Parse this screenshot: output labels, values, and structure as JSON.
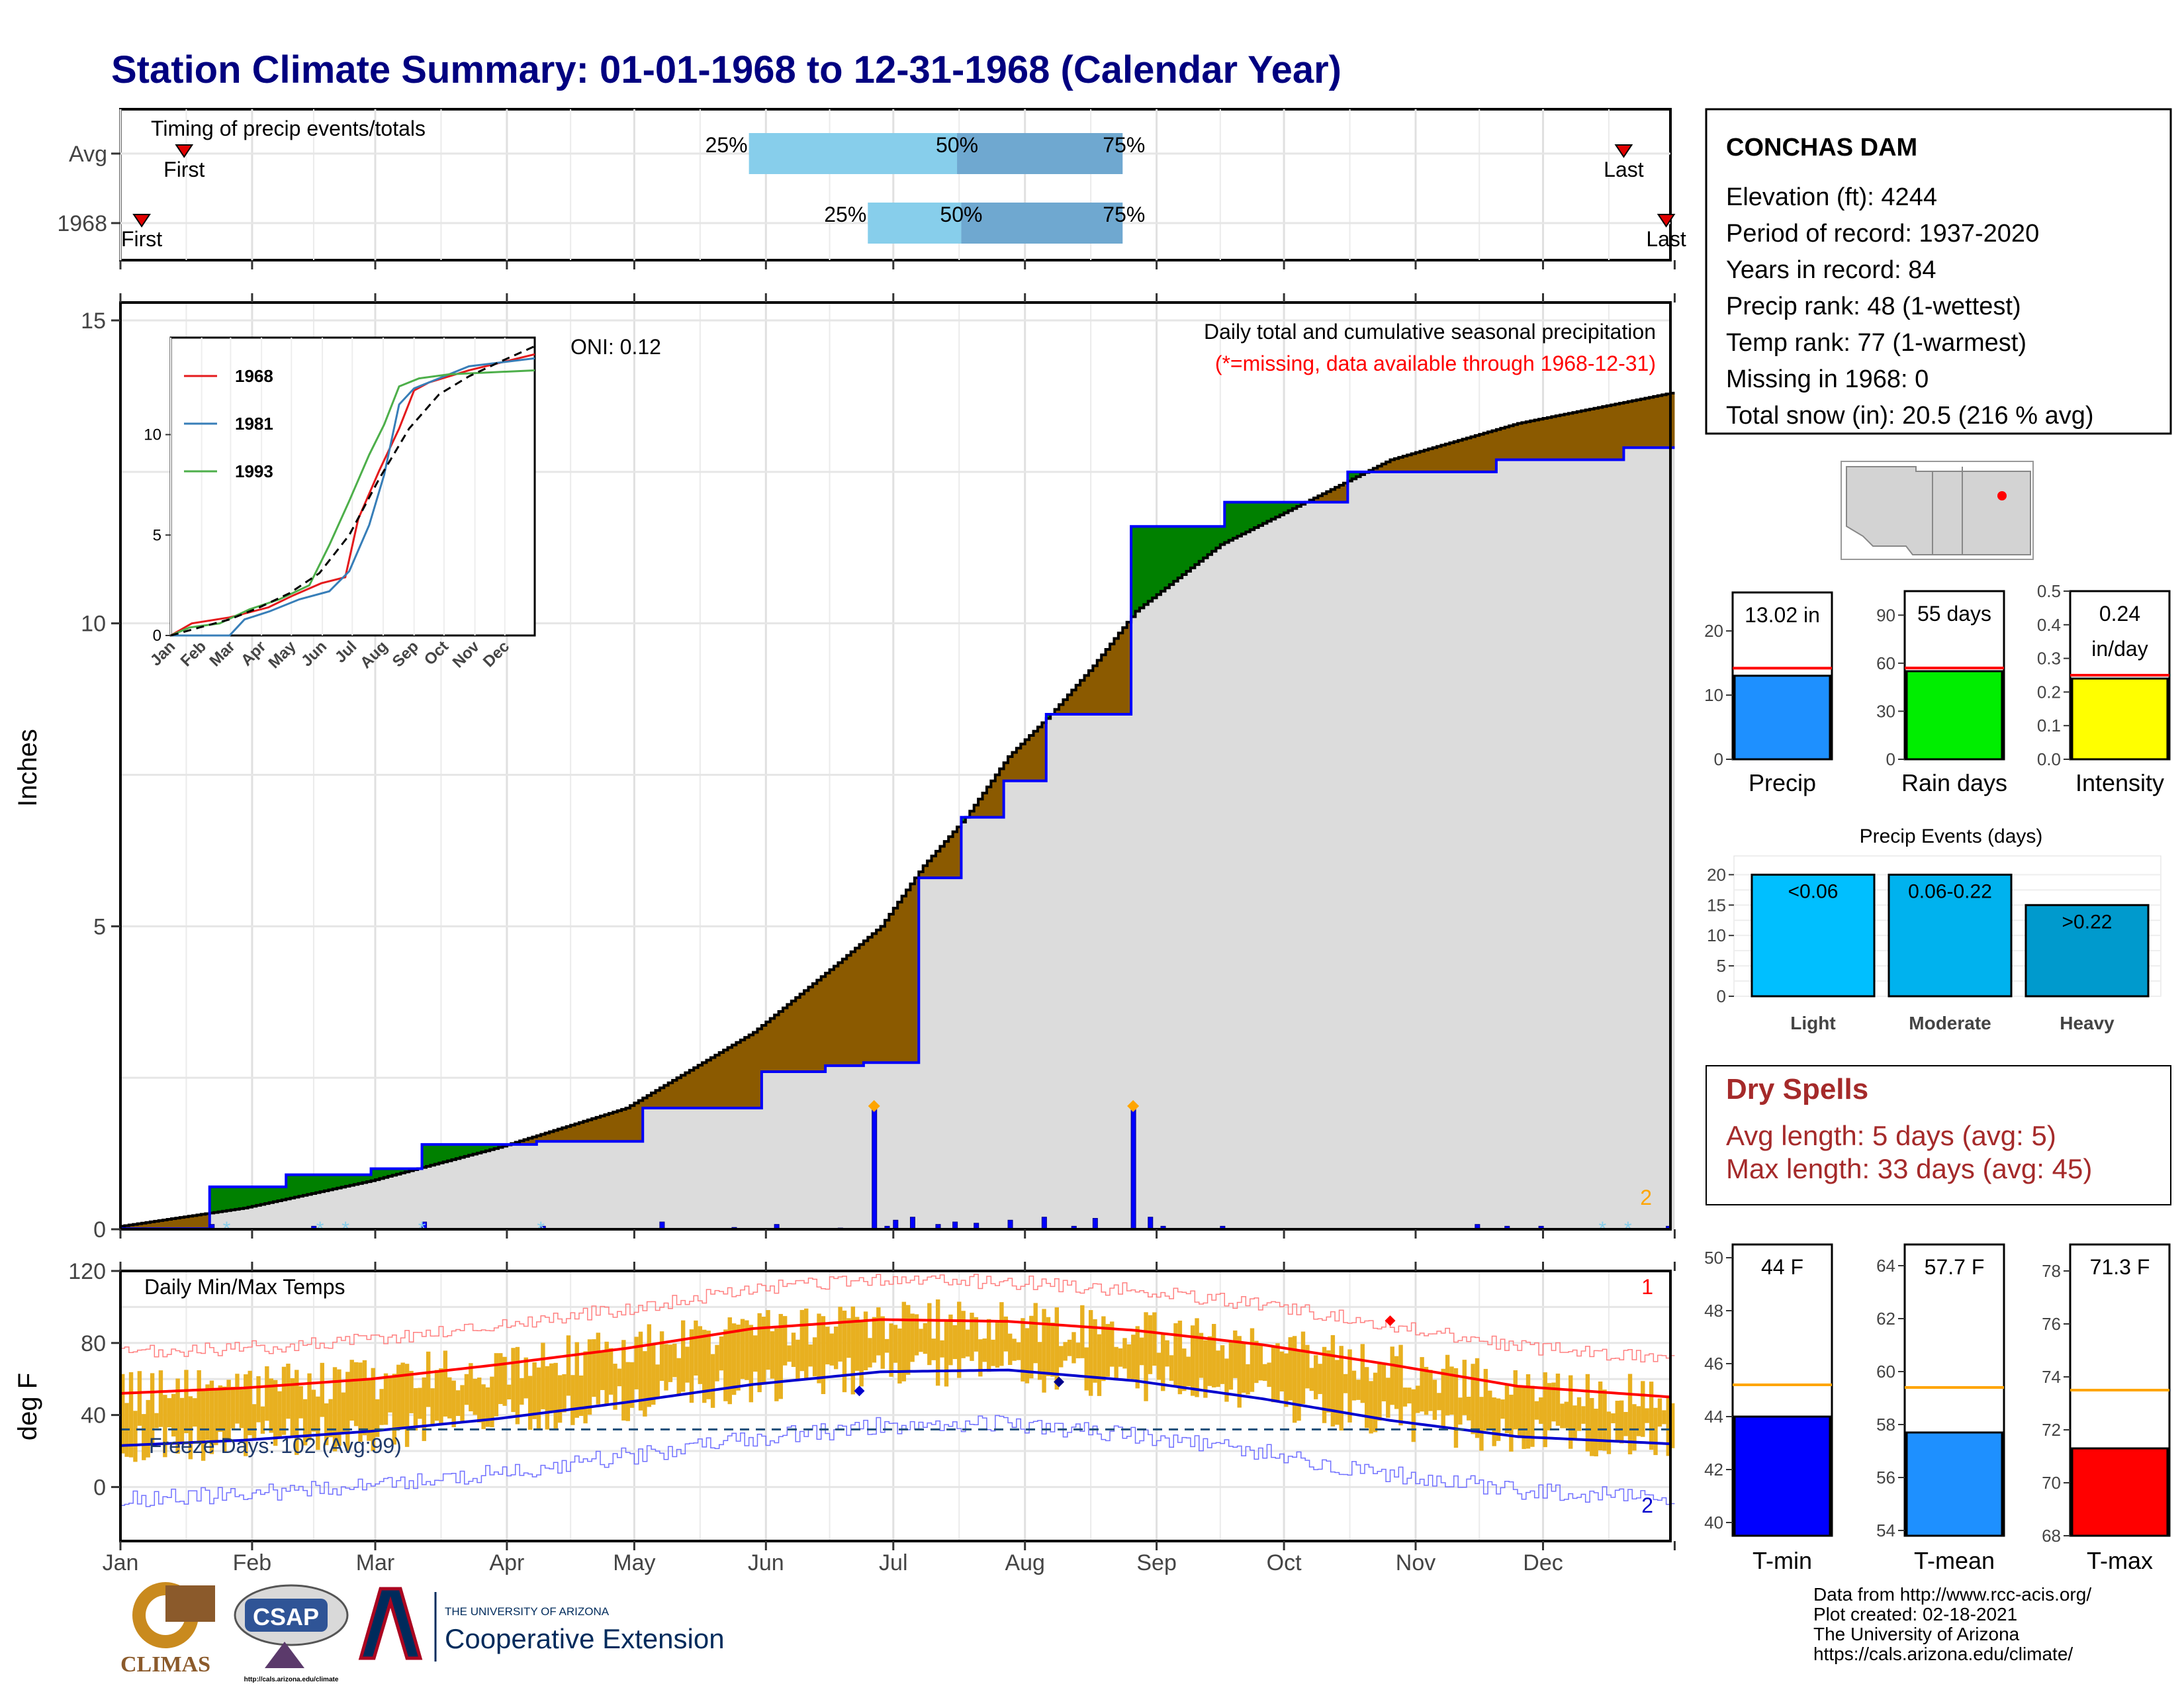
{
  "title": "Station Climate Summary: 01-01-1968 to 12-31-1968 (Calendar Year)",
  "months": [
    "Jan",
    "Feb",
    "Mar",
    "Apr",
    "May",
    "Jun",
    "Jul",
    "Aug",
    "Sep",
    "Oct",
    "Nov",
    "Dec"
  ],
  "timing": {
    "title": "Timing of precip events/totals",
    "rows": [
      {
        "label": "Avg",
        "first_doy": 16,
        "last_doy": 355,
        "first_label": "First",
        "last_label": "Last",
        "p25_doy": 149,
        "p50_doy": 198,
        "p75_doy": 237
      },
      {
        "label": "1968",
        "first_doy": 6,
        "last_doy": 365,
        "first_label": "First",
        "last_label": "Last",
        "p25_doy": 177,
        "p50_doy": 199,
        "p75_doy": 237
      }
    ],
    "pct_labels": [
      "25%",
      "50%",
      "75%"
    ]
  },
  "station": {
    "name": "CONCHAS DAM",
    "lines": [
      "Elevation (ft): 4244",
      "Period of record: 1937-2020",
      "Years in record: 84",
      "Precip rank: 48 (1-wettest)",
      "Temp rank: 77 (1-warmest)",
      "Missing in 1968: 0",
      "Total snow (in): 20.5 (216 % avg)"
    ]
  },
  "precip_panel": {
    "ylabel": "Inches",
    "note1": "Daily total and cumulative seasonal precipitation",
    "note2": "(*=missing, data available through 1968-12-31)",
    "oni": "ONI: 0.12",
    "corner_count": "2",
    "yticks": [
      "0",
      "5",
      "10",
      "15"
    ]
  },
  "inset": {
    "legend": [
      "1968",
      "1981",
      "1993"
    ],
    "legend_colors": [
      "#e41a1c",
      "#377eb8",
      "#4daf4a"
    ],
    "yticks": [
      "0",
      "5",
      "10"
    ],
    "xticks": [
      "Jan",
      "Feb",
      "Mar",
      "Apr",
      "May",
      "Jun",
      "Jul",
      "Aug",
      "Sep",
      "Oct",
      "Nov",
      "Dec"
    ]
  },
  "temp_panel": {
    "ylabel": "deg F",
    "title": "Daily Min/Max Temps",
    "freeze_label": "Freeze Days: 102 (Avg:99)",
    "corner_top": "1",
    "corner_bottom": "2",
    "yticks": [
      "0",
      "40",
      "80",
      "120"
    ]
  },
  "mini_bars": {
    "precip": {
      "label": "Precip",
      "value_label": "13.02 in",
      "value": 13.02,
      "avg": 14.2,
      "yticks": [
        "0",
        "10",
        "20"
      ],
      "color": "#1e90ff"
    },
    "rain_days": {
      "label": "Rain days",
      "value_label": "55 days",
      "value": 55,
      "avg": 57,
      "yticks": [
        "0",
        "30",
        "60",
        "90"
      ],
      "color": "#00ee00"
    },
    "intensity": {
      "label": "Intensity",
      "value_label_1": "0.24",
      "value_label_2": "in/day",
      "value": 0.24,
      "avg": 0.25,
      "yticks": [
        "0.0",
        "0.1",
        "0.2",
        "0.3",
        "0.4",
        "0.5"
      ],
      "color": "#ffff00"
    }
  },
  "precip_events": {
    "title": "Precip Events (days)",
    "categories": [
      "Light",
      "Moderate",
      "Heavy"
    ],
    "bar_labels": [
      "<0.06",
      "0.06-0.22",
      ">0.22"
    ],
    "values": [
      20,
      20,
      15
    ],
    "colors": [
      "#00bfff",
      "#00b2ee",
      "#009acd"
    ],
    "yticks": [
      "0",
      "5",
      "10",
      "15",
      "20"
    ]
  },
  "dry_spells": {
    "title": "Dry Spells",
    "line1": "Avg length: 5 days (avg: 5)",
    "line2": "Max length: 33 days (avg: 45)"
  },
  "temp_bars": {
    "tmin": {
      "label": "T-min",
      "value_label": "44 F",
      "value": 44,
      "avg": 45.2,
      "yticks": [
        "40",
        "42",
        "44",
        "46",
        "48",
        "50"
      ],
      "color": "#0000ff"
    },
    "tmean": {
      "label": "T-mean",
      "value_label": "57.7 F",
      "value": 57.7,
      "avg": 59.4,
      "yticks": [
        "54",
        "56",
        "58",
        "60",
        "62",
        "64"
      ],
      "color": "#1e90ff"
    },
    "tmax": {
      "label": "T-max",
      "value_label": "71.3 F",
      "value": 71.3,
      "avg": 73.5,
      "yticks": [
        "68",
        "70",
        "72",
        "74",
        "76",
        "78"
      ],
      "color": "#ff0000"
    }
  },
  "footer": {
    "lines": [
      "Data from http://www.rcc-acis.org/",
      "Plot created: 02-18-2021",
      "The University of Arizona",
      "https://cals.arizona.edu/climate/"
    ],
    "climas": "CLIMAS",
    "csap": "CSAP",
    "csap_url": "http://cals.arizona.edu/climate",
    "ua_small": "THE UNIVERSITY OF ARIZONA",
    "ua_big": "Cooperative Extension"
  },
  "chart_data": [
    {
      "type": "area",
      "title": "Daily total and cumulative seasonal precipitation",
      "ylabel": "Inches",
      "ylim": [
        0,
        15
      ],
      "x_unit": "day of year 1968",
      "cumulative_1968": {
        "x": [
          1,
          22,
          40,
          60,
          72,
          99,
          124,
          152,
          167,
          176,
          189,
          199,
          209,
          219,
          230,
          239,
          261,
          290,
          325,
          355,
          366
        ],
        "y": [
          0.01,
          0.7,
          0.9,
          1.0,
          1.4,
          1.45,
          2.0,
          2.6,
          2.7,
          2.75,
          5.8,
          6.8,
          7.4,
          8.5,
          8.5,
          11.6,
          12.0,
          12.5,
          12.7,
          12.9,
          12.9
        ]
      },
      "cumulative_avg": {
        "x": [
          1,
          30,
          60,
          90,
          120,
          150,
          170,
          180,
          190,
          200,
          210,
          220,
          230,
          240,
          260,
          280,
          300,
          330,
          366
        ],
        "y": [
          0.05,
          0.35,
          0.8,
          1.35,
          2.0,
          3.25,
          4.4,
          5.0,
          6.0,
          6.8,
          7.8,
          8.5,
          9.3,
          10.2,
          11.3,
          12.0,
          12.7,
          13.3,
          13.8
        ]
      },
      "daily_precip": {
        "x": [
          6,
          22,
          46,
          72,
          100,
          128,
          145,
          155,
          170,
          178,
          181,
          183,
          187,
          193,
          197,
          202,
          210,
          218,
          225,
          230,
          239,
          243,
          246,
          260,
          320,
          327,
          335,
          365
        ],
        "y": [
          0.02,
          0.08,
          0.05,
          0.12,
          0.05,
          0.12,
          0.03,
          0.08,
          0.02,
          2.0,
          0.05,
          0.15,
          0.2,
          0.08,
          0.12,
          0.1,
          0.15,
          0.2,
          0.05,
          0.18,
          2.0,
          0.2,
          0.05,
          0.05,
          0.08,
          0.05,
          0.05,
          0.05
        ]
      }
    },
    {
      "type": "line",
      "title": "Daily Min/Max Temps",
      "ylabel": "deg F",
      "ylim": [
        -30,
        120
      ],
      "freeze_line_y": 32,
      "avg_max": {
        "x": [
          1,
          30,
          60,
          90,
          120,
          150,
          180,
          210,
          240,
          270,
          300,
          330,
          366
        ],
        "y": [
          52,
          55,
          60,
          68,
          77,
          88,
          93,
          92,
          87,
          79,
          68,
          56,
          50
        ]
      },
      "avg_min": {
        "x": [
          1,
          30,
          60,
          90,
          120,
          150,
          180,
          210,
          240,
          270,
          300,
          330,
          366
        ],
        "y": [
          23,
          26,
          31,
          38,
          47,
          57,
          64,
          65,
          59,
          49,
          37,
          28,
          24
        ]
      }
    }
  ]
}
